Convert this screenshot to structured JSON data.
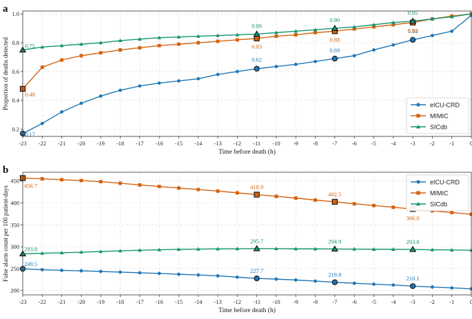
{
  "chart_data": [
    {
      "panel_label": "a",
      "type": "line",
      "xlabel": "Time before death (h)",
      "ylabel": "Proportion of deaths detected",
      "x": [
        -23,
        -22,
        -21,
        -20,
        -19,
        -18,
        -17,
        -16,
        -15,
        -14,
        -13,
        -12,
        -11,
        -10,
        -9,
        -8,
        -7,
        -6,
        -5,
        -4,
        -3,
        -2,
        -1,
        0
      ],
      "xticks": [
        -23,
        -22,
        -21,
        -20,
        -19,
        -18,
        -17,
        -16,
        -15,
        -14,
        -13,
        -12,
        -11,
        -10,
        -9,
        -8,
        -7,
        -6,
        -5,
        -4,
        -3,
        -2,
        -1,
        0
      ],
      "xlim": [
        -23,
        0
      ],
      "ylim": [
        0.15,
        1.02
      ],
      "yticks": [
        0.2,
        0.4,
        0.6,
        0.8,
        1.0
      ],
      "ytick_labels": [
        "0.2",
        "0.4",
        "0.6",
        "0.8",
        "1.0"
      ],
      "grid": true,
      "legend_position": "lower-right",
      "series": [
        {
          "name": "eICU-CRD",
          "color": "#1f77b4",
          "marker": "circle",
          "values": [
            0.17,
            0.24,
            0.32,
            0.38,
            0.43,
            0.47,
            0.5,
            0.52,
            0.535,
            0.55,
            0.58,
            0.6,
            0.62,
            0.635,
            0.65,
            0.67,
            0.69,
            0.71,
            0.75,
            0.785,
            0.82,
            0.85,
            0.88,
            0.99
          ],
          "annotations": [
            {
              "x": -23,
              "text": "0.17"
            },
            {
              "x": -11,
              "text": "0.62"
            },
            {
              "x": -7,
              "text": "0.69"
            },
            {
              "x": -3,
              "text": "0.82"
            }
          ]
        },
        {
          "name": "MIMIC",
          "color": "#d4620e",
          "marker": "square",
          "values": [
            0.48,
            0.63,
            0.68,
            0.71,
            0.73,
            0.75,
            0.765,
            0.78,
            0.79,
            0.8,
            0.81,
            0.82,
            0.83,
            0.845,
            0.855,
            0.87,
            0.88,
            0.895,
            0.91,
            0.925,
            0.94,
            0.965,
            0.985,
            1.0
          ],
          "annotations": [
            {
              "x": -23,
              "text": "0.48"
            },
            {
              "x": -11,
              "text": "0.83"
            },
            {
              "x": -7,
              "text": "0.88"
            },
            {
              "x": -3,
              "text": "0.94"
            }
          ]
        },
        {
          "name": "SICdb",
          "color": "#15956e",
          "marker": "triangle",
          "values": [
            0.75,
            0.77,
            0.78,
            0.79,
            0.8,
            0.815,
            0.825,
            0.835,
            0.84,
            0.845,
            0.85,
            0.855,
            0.86,
            0.87,
            0.88,
            0.89,
            0.9,
            0.91,
            0.925,
            0.94,
            0.95,
            0.965,
            0.98,
            1.0
          ],
          "annotations": [
            {
              "x": -23,
              "text": "0.75"
            },
            {
              "x": -11,
              "text": "0.86"
            },
            {
              "x": -7,
              "text": "0.90"
            },
            {
              "x": -3,
              "text": "0.95"
            }
          ]
        }
      ]
    },
    {
      "panel_label": "b",
      "type": "line",
      "xlabel": "Time before death (h)",
      "ylabel": "False alarm count per 100 patient-days",
      "x": [
        -23,
        -22,
        -21,
        -20,
        -19,
        -18,
        -17,
        -16,
        -15,
        -14,
        -13,
        -12,
        -11,
        -10,
        -9,
        -8,
        -7,
        -6,
        -5,
        -4,
        -3,
        -2,
        -1,
        0
      ],
      "xticks": [
        -23,
        -22,
        -21,
        -20,
        -19,
        -18,
        -17,
        -16,
        -15,
        -14,
        -13,
        -12,
        -11,
        -10,
        -9,
        -8,
        -7,
        -6,
        -5,
        -4,
        -3,
        -2,
        -1,
        0
      ],
      "xlim": [
        -23,
        0
      ],
      "ylim": [
        190,
        470
      ],
      "yticks": [
        200,
        250,
        300,
        350,
        400,
        450
      ],
      "ytick_labels": [
        "200",
        "250",
        "300",
        "350",
        "400",
        "450"
      ],
      "grid": true,
      "legend_position": "top-right",
      "series": [
        {
          "name": "eICU-CRD",
          "color": "#1f77b4",
          "marker": "circle",
          "values": [
            249.5,
            247.5,
            246.0,
            245.0,
            243.5,
            242.0,
            240.5,
            239.0,
            237.0,
            235.5,
            233.5,
            230.5,
            227.7,
            226.0,
            224.0,
            221.5,
            218.8,
            216.5,
            214.5,
            212.5,
            210.1,
            208.0,
            206.0,
            204.0
          ],
          "annotations": [
            {
              "x": -23,
              "text": "249.5"
            },
            {
              "x": -11,
              "text": "227.7"
            },
            {
              "x": -7,
              "text": "218.8"
            },
            {
              "x": -3,
              "text": "210.1"
            }
          ]
        },
        {
          "name": "MIMIC",
          "color": "#d4620e",
          "marker": "square",
          "values": [
            456.7,
            455.0,
            453.0,
            451.0,
            448.5,
            445.0,
            441.0,
            437.5,
            434.0,
            430.5,
            427.0,
            423.0,
            418.9,
            415.0,
            411.0,
            406.5,
            402.5,
            398.0,
            394.0,
            390.0,
            386.0,
            382.0,
            378.0,
            374.0
          ],
          "annotations": [
            {
              "x": -23,
              "text": "456.7"
            },
            {
              "x": -11,
              "text": "418.9"
            },
            {
              "x": -7,
              "text": "402.5"
            },
            {
              "x": -3,
              "text": "386.0"
            }
          ]
        },
        {
          "name": "SICdb",
          "color": "#15956e",
          "marker": "triangle",
          "values": [
            283.8,
            285.0,
            286.0,
            287.5,
            289.0,
            290.5,
            292.0,
            293.0,
            294.0,
            294.5,
            295.0,
            295.3,
            295.7,
            295.5,
            295.2,
            295.0,
            294.9,
            294.5,
            294.2,
            294.0,
            293.8,
            293.0,
            292.5,
            292.0
          ],
          "annotations": [
            {
              "x": -23,
              "text": "283.8"
            },
            {
              "x": -11,
              "text": "295.7"
            },
            {
              "x": -7,
              "text": "294.9"
            },
            {
              "x": -3,
              "text": "293.8"
            }
          ]
        }
      ]
    }
  ]
}
